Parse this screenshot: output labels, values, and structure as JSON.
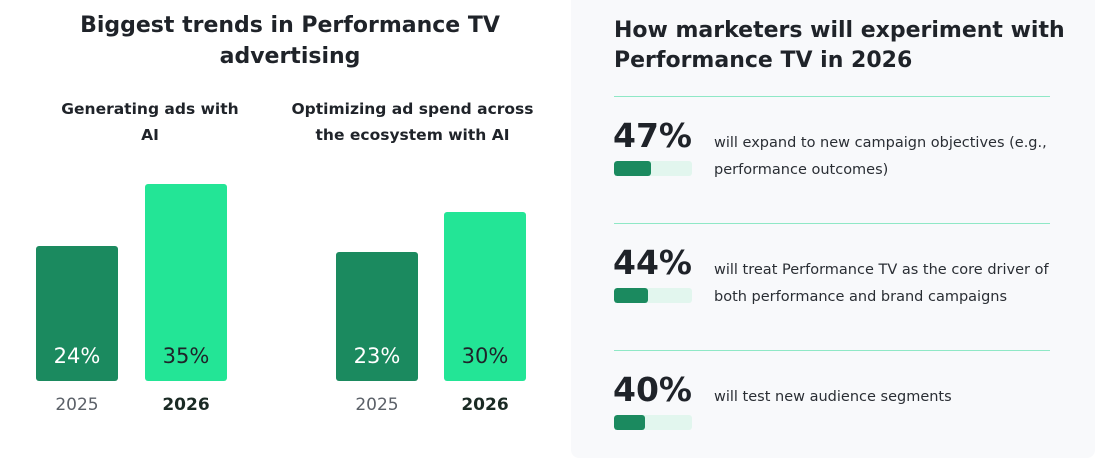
{
  "left": {
    "title": "Biggest trends in Performance TV advertising"
  },
  "chart_data": [
    {
      "type": "bar",
      "title": "Generating ads with AI",
      "categories": [
        "2025",
        "2026"
      ],
      "values": [
        24,
        35
      ],
      "labels": [
        "24%",
        "35%"
      ],
      "colors": [
        "#1b8a5f",
        "#23e596"
      ]
    },
    {
      "type": "bar",
      "title": "Optimizing ad spend across the ecosystem with AI",
      "categories": [
        "2025",
        "2026"
      ],
      "values": [
        23,
        30
      ],
      "labels": [
        "23%",
        "30%"
      ],
      "colors": [
        "#1b8a5f",
        "#23e596"
      ]
    }
  ],
  "right": {
    "title": "How marketers will experiment with Performance TV in 2026",
    "items": [
      {
        "pct": "47%",
        "value": 47,
        "text": "will expand to new campaign objectives (e.g., performance outcomes)"
      },
      {
        "pct": "44%",
        "value": 44,
        "text": "will treat Performance TV as the core driver of both performance and brand campaigns"
      },
      {
        "pct": "40%",
        "value": 40,
        "text": "will test new audience segments"
      }
    ]
  }
}
